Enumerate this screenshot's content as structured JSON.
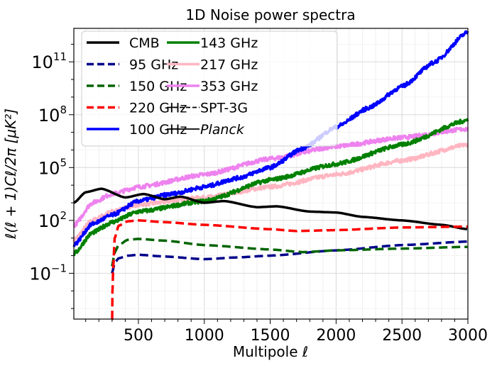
{
  "chart_data": {
    "type": "line",
    "title": "1D Noise power spectra",
    "xlabel": "Multipole ℓ",
    "ylabel": "ℓ(ℓ + 1)Cℓ/2π [μK²]",
    "xscale": "linear",
    "yscale": "log",
    "xlim": [
      10,
      3000
    ],
    "ylim_log10": [
      -3.6,
      12.9
    ],
    "grid": true,
    "legend_placement": "top-left",
    "x_ticks": [
      500,
      1000,
      1500,
      2000,
      2500,
      3000
    ],
    "x_tick_labels": [
      "500",
      "1000",
      "1500",
      "2000",
      "2500",
      "3000"
    ],
    "y_ticks_log10": [
      -1,
      2,
      5,
      8,
      11
    ],
    "y_tick_labels": [
      {
        "base": "10",
        "exp": "−1"
      },
      {
        "base": "10",
        "exp": "2"
      },
      {
        "base": "10",
        "exp": "5"
      },
      {
        "base": "10",
        "exp": "8"
      },
      {
        "base": "10",
        "exp": "11"
      }
    ],
    "series": [
      {
        "name": "CMB",
        "color": "#000000",
        "style": "solid",
        "noisy": false,
        "x": [
          10,
          100,
          220,
          400,
          540,
          700,
          820,
          1000,
          1150,
          1400,
          1550,
          1800,
          2000,
          2200,
          2500,
          2800,
          3000
        ],
        "log10_y": [
          3.0,
          3.6,
          3.8,
          3.3,
          3.5,
          3.2,
          3.35,
          3.0,
          3.1,
          2.75,
          2.8,
          2.5,
          2.45,
          2.2,
          2.0,
          1.75,
          1.5
        ]
      },
      {
        "name": "95 GHz",
        "color": "#00008b",
        "style": "dashed",
        "noisy": false,
        "x": [
          300,
          320,
          350,
          420,
          500,
          700,
          1000,
          1250,
          1500,
          2000,
          2500,
          3000
        ],
        "log10_y": [
          -1.0,
          -0.4,
          -0.15,
          0.0,
          0.05,
          -0.05,
          -0.2,
          -0.1,
          0.0,
          0.3,
          0.6,
          0.8
        ]
      },
      {
        "name": "150 GHz",
        "color": "#006400",
        "style": "dashed",
        "noisy": false,
        "x": [
          300,
          320,
          350,
          420,
          500,
          700,
          1000,
          1500,
          1750,
          2000,
          2500,
          3000
        ],
        "log10_y": [
          -0.6,
          0.2,
          0.6,
          0.9,
          0.95,
          0.85,
          0.6,
          0.35,
          0.2,
          0.3,
          0.4,
          0.5
        ]
      },
      {
        "name": "220 GHz",
        "color": "#ff0000",
        "style": "dashed",
        "noisy": false,
        "x": [
          300,
          303,
          310,
          320,
          350,
          420,
          500,
          700,
          1000,
          1500,
          1700,
          2000,
          2500,
          3000
        ],
        "log10_y": [
          -4.5,
          -2.0,
          -0.5,
          1.0,
          1.7,
          1.95,
          2.0,
          1.9,
          1.75,
          1.5,
          1.4,
          1.45,
          1.6,
          1.65
        ]
      },
      {
        "name": "100 GHz",
        "color": "#0000ff",
        "style": "solid",
        "noisy": true,
        "x": [
          10,
          150,
          300,
          500,
          750,
          1000,
          1250,
          1500,
          1750,
          2000,
          2250,
          2500,
          2750,
          3000
        ],
        "log10_y": [
          0.6,
          1.8,
          2.3,
          3.1,
          3.5,
          3.9,
          4.4,
          5.0,
          6.1,
          7.3,
          8.4,
          9.6,
          11.0,
          12.7
        ]
      },
      {
        "name": "143 GHz",
        "color": "#008000",
        "style": "solid",
        "noisy": true,
        "x": [
          10,
          150,
          300,
          500,
          1000,
          1500,
          2000,
          2500,
          3000
        ],
        "log10_y": [
          0.1,
          1.3,
          1.9,
          2.5,
          3.1,
          4.3,
          5.2,
          6.3,
          7.7
        ]
      },
      {
        "name": "217 GHz",
        "color": "#ffb6c1",
        "style": "solid",
        "noisy": true,
        "x": [
          10,
          150,
          300,
          500,
          1000,
          1500,
          2000,
          2500,
          3000
        ],
        "log10_y": [
          0.9,
          2.0,
          2.5,
          2.9,
          3.3,
          3.9,
          4.6,
          5.4,
          6.3
        ]
      },
      {
        "name": "353 GHz",
        "color": "#ee82ee",
        "style": "solid",
        "noisy": true,
        "x": [
          10,
          150,
          300,
          500,
          1000,
          1500,
          2000,
          2500,
          3000
        ],
        "log10_y": [
          1.7,
          3.0,
          3.5,
          3.9,
          4.6,
          5.5,
          6.2,
          6.7,
          7.2
        ]
      }
    ],
    "legend": [
      {
        "label": "CMB",
        "color": "#000000",
        "style": "solid",
        "width": 3.5
      },
      {
        "label": "95 GHz",
        "color": "#00008b",
        "style": "dashed",
        "width": 3.5
      },
      {
        "label": "150 GHz",
        "color": "#006400",
        "style": "dashed",
        "width": 3.5
      },
      {
        "label": "220 GHz",
        "color": "#ff0000",
        "style": "dashed",
        "width": 3.5
      },
      {
        "label": "100 GHz",
        "color": "#0000ff",
        "style": "solid",
        "width": 3.5
      },
      {
        "label": "143 GHz",
        "color": "#008000",
        "style": "solid",
        "width": 3.5
      },
      {
        "label": "217 GHz",
        "color": "#ffb6c1",
        "style": "solid",
        "width": 3.5
      },
      {
        "label": "353 GHz",
        "color": "#ee82ee",
        "style": "solid",
        "width": 3.5
      },
      {
        "label": "SPT-3G",
        "color": "#000000",
        "style": "dashed",
        "width": 1.8
      },
      {
        "label": "Planck",
        "color": "#000000",
        "style": "solid",
        "width": 1.8,
        "italic": true
      }
    ]
  }
}
